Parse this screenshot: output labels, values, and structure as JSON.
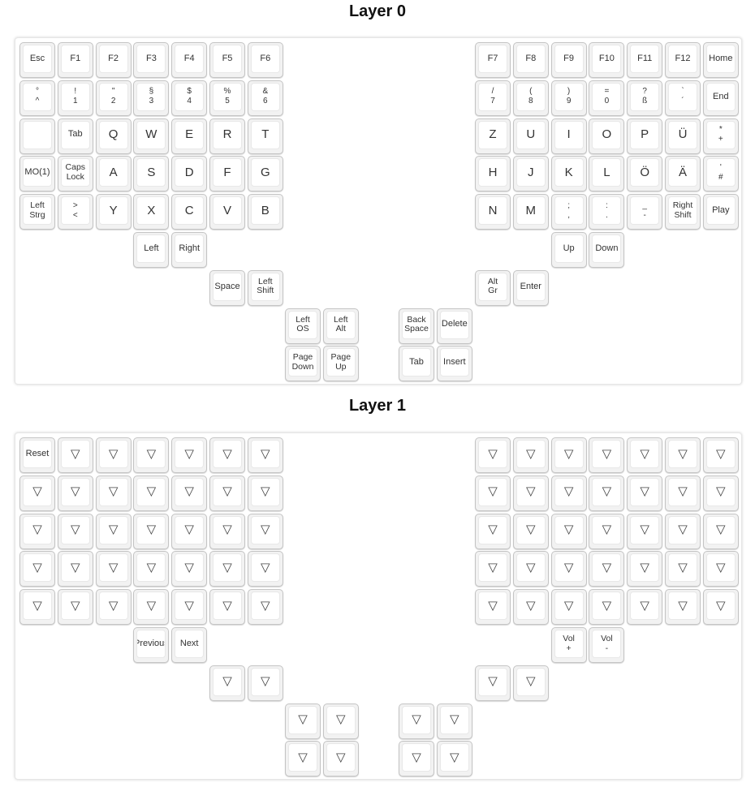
{
  "layers": [
    {
      "title": "Layer 0",
      "keys": [
        {
          "id": "l00",
          "legends": [
            "Esc"
          ]
        },
        {
          "id": "l01",
          "legends": [
            "F1"
          ]
        },
        {
          "id": "l02",
          "legends": [
            "F2"
          ]
        },
        {
          "id": "l03",
          "legends": [
            "F3"
          ]
        },
        {
          "id": "l04",
          "legends": [
            "F4"
          ]
        },
        {
          "id": "l05",
          "legends": [
            "F5"
          ]
        },
        {
          "id": "l06",
          "legends": [
            "F6"
          ]
        },
        {
          "id": "l10",
          "legends": [
            "°",
            "^"
          ]
        },
        {
          "id": "l11",
          "legends": [
            "!",
            "1"
          ]
        },
        {
          "id": "l12",
          "legends": [
            "\"",
            "2"
          ]
        },
        {
          "id": "l13",
          "legends": [
            "§",
            "3"
          ]
        },
        {
          "id": "l14",
          "legends": [
            "$",
            "4"
          ]
        },
        {
          "id": "l15",
          "legends": [
            "%",
            "5"
          ]
        },
        {
          "id": "l16",
          "legends": [
            "&",
            "6"
          ]
        },
        {
          "id": "l20",
          "legends": []
        },
        {
          "id": "l21",
          "legends": [
            "Tab"
          ]
        },
        {
          "id": "l22",
          "legends": [
            "Q"
          ]
        },
        {
          "id": "l23",
          "legends": [
            "W"
          ]
        },
        {
          "id": "l24",
          "legends": [
            "E"
          ]
        },
        {
          "id": "l25",
          "legends": [
            "R"
          ]
        },
        {
          "id": "l26",
          "legends": [
            "T"
          ]
        },
        {
          "id": "l30",
          "legends": [
            "MO(1)"
          ]
        },
        {
          "id": "l31",
          "legends": [
            "Caps",
            "Lock"
          ]
        },
        {
          "id": "l32",
          "legends": [
            "A"
          ]
        },
        {
          "id": "l33",
          "legends": [
            "S"
          ]
        },
        {
          "id": "l34",
          "legends": [
            "D"
          ]
        },
        {
          "id": "l35",
          "legends": [
            "F"
          ]
        },
        {
          "id": "l36",
          "legends": [
            "G"
          ]
        },
        {
          "id": "l40",
          "legends": [
            "Left",
            "Strg"
          ]
        },
        {
          "id": "l41",
          "legends": [
            ">",
            "<"
          ]
        },
        {
          "id": "l42",
          "legends": [
            "Y"
          ]
        },
        {
          "id": "l43",
          "legends": [
            "X"
          ]
        },
        {
          "id": "l44",
          "legends": [
            "C"
          ]
        },
        {
          "id": "l45",
          "legends": [
            "V"
          ]
        },
        {
          "id": "l46",
          "legends": [
            "B"
          ]
        },
        {
          "id": "l53",
          "legends": [
            "Left"
          ]
        },
        {
          "id": "l54",
          "legends": [
            "Right"
          ]
        },
        {
          "id": "t00",
          "legends": [
            "Space"
          ]
        },
        {
          "id": "t01",
          "legends": [
            "Left",
            "Shift"
          ]
        },
        {
          "id": "t10",
          "legends": [
            "Left",
            "OS"
          ]
        },
        {
          "id": "t11",
          "legends": [
            "Left",
            "Alt"
          ]
        },
        {
          "id": "t20",
          "legends": [
            "Page",
            "Down"
          ]
        },
        {
          "id": "t21",
          "legends": [
            "Page",
            "Up"
          ]
        },
        {
          "id": "r00",
          "legends": [
            "F7"
          ]
        },
        {
          "id": "r01",
          "legends": [
            "F8"
          ]
        },
        {
          "id": "r02",
          "legends": [
            "F9"
          ]
        },
        {
          "id": "r03",
          "legends": [
            "F10"
          ]
        },
        {
          "id": "r04",
          "legends": [
            "F11"
          ]
        },
        {
          "id": "r05",
          "legends": [
            "F12"
          ]
        },
        {
          "id": "r06",
          "legends": [
            "Home"
          ]
        },
        {
          "id": "r10",
          "legends": [
            "/",
            "7"
          ]
        },
        {
          "id": "r11",
          "legends": [
            "(",
            "8"
          ]
        },
        {
          "id": "r12",
          "legends": [
            ")",
            "9"
          ]
        },
        {
          "id": "r13",
          "legends": [
            "=",
            "0"
          ]
        },
        {
          "id": "r14",
          "legends": [
            "?",
            "ß"
          ]
        },
        {
          "id": "r15",
          "legends": [
            "`",
            "´"
          ]
        },
        {
          "id": "r16",
          "legends": [
            "End"
          ]
        },
        {
          "id": "r20",
          "legends": [
            "Z"
          ]
        },
        {
          "id": "r21",
          "legends": [
            "U"
          ]
        },
        {
          "id": "r22",
          "legends": [
            "I"
          ]
        },
        {
          "id": "r23",
          "legends": [
            "O"
          ]
        },
        {
          "id": "r24",
          "legends": [
            "P"
          ]
        },
        {
          "id": "r25",
          "legends": [
            "Ü"
          ]
        },
        {
          "id": "r26",
          "legends": [
            "*",
            "+"
          ]
        },
        {
          "id": "r30",
          "legends": [
            "H"
          ]
        },
        {
          "id": "r31",
          "legends": [
            "J"
          ]
        },
        {
          "id": "r32",
          "legends": [
            "K"
          ]
        },
        {
          "id": "r33",
          "legends": [
            "L"
          ]
        },
        {
          "id": "r34",
          "legends": [
            "Ö"
          ]
        },
        {
          "id": "r35",
          "legends": [
            "Ä"
          ]
        },
        {
          "id": "r36",
          "legends": [
            "'",
            "#"
          ]
        },
        {
          "id": "r40",
          "legends": [
            "N"
          ]
        },
        {
          "id": "r41",
          "legends": [
            "M"
          ]
        },
        {
          "id": "r42",
          "legends": [
            ";",
            ","
          ]
        },
        {
          "id": "r43",
          "legends": [
            ":",
            "."
          ]
        },
        {
          "id": "r44",
          "legends": [
            "_",
            "-"
          ]
        },
        {
          "id": "r45",
          "legends": [
            "Right",
            "Shift"
          ]
        },
        {
          "id": "r46",
          "legends": [
            "Play"
          ]
        },
        {
          "id": "r52",
          "legends": [
            "Up"
          ]
        },
        {
          "id": "r53",
          "legends": [
            "Down"
          ]
        },
        {
          "id": "s00",
          "legends": [
            "Alt",
            "Gr"
          ]
        },
        {
          "id": "s01",
          "legends": [
            "Enter"
          ]
        },
        {
          "id": "s10",
          "legends": [
            "Back",
            "Space"
          ]
        },
        {
          "id": "s11",
          "legends": [
            "Delete"
          ]
        },
        {
          "id": "s20",
          "legends": [
            "Tab"
          ]
        },
        {
          "id": "s21",
          "legends": [
            "Insert"
          ]
        }
      ]
    },
    {
      "title": "Layer 1",
      "keys": [
        {
          "id": "l00",
          "legends": [
            "Reset"
          ]
        },
        {
          "id": "l01",
          "legends": [
            "▽"
          ]
        },
        {
          "id": "l02",
          "legends": [
            "▽"
          ]
        },
        {
          "id": "l03",
          "legends": [
            "▽"
          ]
        },
        {
          "id": "l04",
          "legends": [
            "▽"
          ]
        },
        {
          "id": "l05",
          "legends": [
            "▽"
          ]
        },
        {
          "id": "l06",
          "legends": [
            "▽"
          ]
        },
        {
          "id": "l10",
          "legends": [
            "▽"
          ]
        },
        {
          "id": "l11",
          "legends": [
            "▽"
          ]
        },
        {
          "id": "l12",
          "legends": [
            "▽"
          ]
        },
        {
          "id": "l13",
          "legends": [
            "▽"
          ]
        },
        {
          "id": "l14",
          "legends": [
            "▽"
          ]
        },
        {
          "id": "l15",
          "legends": [
            "▽"
          ]
        },
        {
          "id": "l16",
          "legends": [
            "▽"
          ]
        },
        {
          "id": "l20",
          "legends": [
            "▽"
          ]
        },
        {
          "id": "l21",
          "legends": [
            "▽"
          ]
        },
        {
          "id": "l22",
          "legends": [
            "▽"
          ]
        },
        {
          "id": "l23",
          "legends": [
            "▽"
          ]
        },
        {
          "id": "l24",
          "legends": [
            "▽"
          ]
        },
        {
          "id": "l25",
          "legends": [
            "▽"
          ]
        },
        {
          "id": "l26",
          "legends": [
            "▽"
          ]
        },
        {
          "id": "l30",
          "legends": [
            "▽"
          ]
        },
        {
          "id": "l31",
          "legends": [
            "▽"
          ]
        },
        {
          "id": "l32",
          "legends": [
            "▽"
          ]
        },
        {
          "id": "l33",
          "legends": [
            "▽"
          ]
        },
        {
          "id": "l34",
          "legends": [
            "▽"
          ]
        },
        {
          "id": "l35",
          "legends": [
            "▽"
          ]
        },
        {
          "id": "l36",
          "legends": [
            "▽"
          ]
        },
        {
          "id": "l40",
          "legends": [
            "▽"
          ]
        },
        {
          "id": "l41",
          "legends": [
            "▽"
          ]
        },
        {
          "id": "l42",
          "legends": [
            "▽"
          ]
        },
        {
          "id": "l43",
          "legends": [
            "▽"
          ]
        },
        {
          "id": "l44",
          "legends": [
            "▽"
          ]
        },
        {
          "id": "l45",
          "legends": [
            "▽"
          ]
        },
        {
          "id": "l46",
          "legends": [
            "▽"
          ]
        },
        {
          "id": "l53",
          "legends": [
            "Previous"
          ]
        },
        {
          "id": "l54",
          "legends": [
            "Next"
          ]
        },
        {
          "id": "t00",
          "legends": [
            "▽"
          ]
        },
        {
          "id": "t01",
          "legends": [
            "▽"
          ]
        },
        {
          "id": "t10",
          "legends": [
            "▽"
          ]
        },
        {
          "id": "t11",
          "legends": [
            "▽"
          ]
        },
        {
          "id": "t20",
          "legends": [
            "▽"
          ]
        },
        {
          "id": "t21",
          "legends": [
            "▽"
          ]
        },
        {
          "id": "r00",
          "legends": [
            "▽"
          ]
        },
        {
          "id": "r01",
          "legends": [
            "▽"
          ]
        },
        {
          "id": "r02",
          "legends": [
            "▽"
          ]
        },
        {
          "id": "r03",
          "legends": [
            "▽"
          ]
        },
        {
          "id": "r04",
          "legends": [
            "▽"
          ]
        },
        {
          "id": "r05",
          "legends": [
            "▽"
          ]
        },
        {
          "id": "r06",
          "legends": [
            "▽"
          ]
        },
        {
          "id": "r10",
          "legends": [
            "▽"
          ]
        },
        {
          "id": "r11",
          "legends": [
            "▽"
          ]
        },
        {
          "id": "r12",
          "legends": [
            "▽"
          ]
        },
        {
          "id": "r13",
          "legends": [
            "▽"
          ]
        },
        {
          "id": "r14",
          "legends": [
            "▽"
          ]
        },
        {
          "id": "r15",
          "legends": [
            "▽"
          ]
        },
        {
          "id": "r16",
          "legends": [
            "▽"
          ]
        },
        {
          "id": "r20",
          "legends": [
            "▽"
          ]
        },
        {
          "id": "r21",
          "legends": [
            "▽"
          ]
        },
        {
          "id": "r22",
          "legends": [
            "▽"
          ]
        },
        {
          "id": "r23",
          "legends": [
            "▽"
          ]
        },
        {
          "id": "r24",
          "legends": [
            "▽"
          ]
        },
        {
          "id": "r25",
          "legends": [
            "▽"
          ]
        },
        {
          "id": "r26",
          "legends": [
            "▽"
          ]
        },
        {
          "id": "r30",
          "legends": [
            "▽"
          ]
        },
        {
          "id": "r31",
          "legends": [
            "▽"
          ]
        },
        {
          "id": "r32",
          "legends": [
            "▽"
          ]
        },
        {
          "id": "r33",
          "legends": [
            "▽"
          ]
        },
        {
          "id": "r34",
          "legends": [
            "▽"
          ]
        },
        {
          "id": "r35",
          "legends": [
            "▽"
          ]
        },
        {
          "id": "r36",
          "legends": [
            "▽"
          ]
        },
        {
          "id": "r40",
          "legends": [
            "▽"
          ]
        },
        {
          "id": "r41",
          "legends": [
            "▽"
          ]
        },
        {
          "id": "r42",
          "legends": [
            "▽"
          ]
        },
        {
          "id": "r43",
          "legends": [
            "▽"
          ]
        },
        {
          "id": "r44",
          "legends": [
            "▽"
          ]
        },
        {
          "id": "r45",
          "legends": [
            "▽"
          ]
        },
        {
          "id": "r46",
          "legends": [
            "▽"
          ]
        },
        {
          "id": "r52",
          "legends": [
            "Vol",
            "+"
          ]
        },
        {
          "id": "r53",
          "legends": [
            "Vol",
            "-"
          ]
        },
        {
          "id": "s00",
          "legends": [
            "▽"
          ]
        },
        {
          "id": "s01",
          "legends": [
            "▽"
          ]
        },
        {
          "id": "s10",
          "legends": [
            "▽"
          ]
        },
        {
          "id": "s11",
          "legends": [
            "▽"
          ]
        },
        {
          "id": "s20",
          "legends": [
            "▽"
          ]
        },
        {
          "id": "s21",
          "legends": [
            "▽"
          ]
        }
      ]
    }
  ]
}
